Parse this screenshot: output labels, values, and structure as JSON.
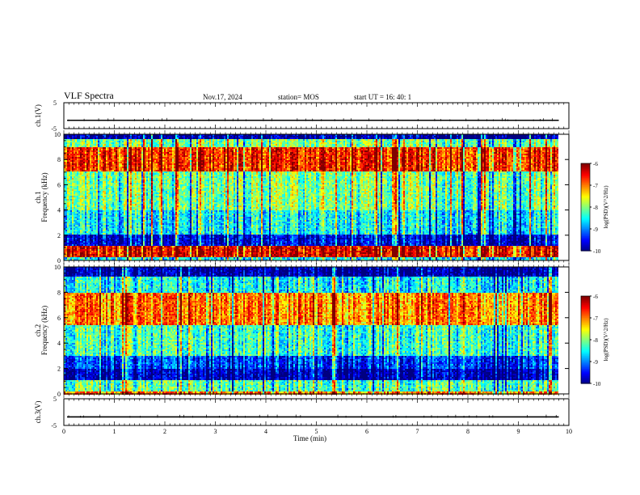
{
  "header": {
    "title": "VLF Spectra",
    "date": "Nov.17, 2024",
    "station": "station= MOS",
    "start": "start  UT =   16: 40: 1"
  },
  "chart_data": [
    {
      "type": "line",
      "panel": "ch1-waveform",
      "ylabel": "ch.1(V)",
      "ylim": [
        -5,
        5
      ],
      "yticks": [
        "5",
        "-5"
      ],
      "xlim": [
        0,
        10
      ],
      "series": [
        {
          "values_approx_constant": -1.8
        }
      ]
    },
    {
      "type": "heatmap",
      "panel": "ch1-spectrogram",
      "ylabel": "ch.1  Frequency (kHz)",
      "ylim": [
        0,
        10
      ],
      "yticks": [
        "0",
        "2",
        "4",
        "6",
        "8",
        "10"
      ],
      "xlim": [
        0,
        9.8
      ],
      "colorbar": {
        "label": "log(PSD)(V^2/Hz)",
        "range": [
          -10,
          -6
        ],
        "ticks": [
          "-6",
          "-7",
          "-8",
          "-9",
          "-10"
        ]
      },
      "bands": [
        {
          "freq": [
            9.6,
            10
          ],
          "level": -9.9
        },
        {
          "freq": [
            9.0,
            9.6
          ],
          "level": -8.0
        },
        {
          "freq": [
            7.0,
            9.0
          ],
          "level": -6.6
        },
        {
          "freq": [
            4.0,
            7.0
          ],
          "level": -8.0
        },
        {
          "freq": [
            2.0,
            4.0
          ],
          "level": -8.5
        },
        {
          "freq": [
            1.2,
            2.0
          ],
          "level": -9.6
        },
        {
          "freq": [
            0.2,
            1.2
          ],
          "level": -6.4
        },
        {
          "freq": [
            0.0,
            0.2
          ],
          "level": -8.5
        }
      ]
    },
    {
      "type": "heatmap",
      "panel": "ch2-spectrogram",
      "ylabel": "ch.2  Frequency (kHz)",
      "ylim": [
        0,
        10
      ],
      "yticks": [
        "0",
        "2",
        "4",
        "6",
        "8",
        "10"
      ],
      "xlim": [
        0,
        9.8
      ],
      "colorbar": {
        "label": "log(PSD)(V^2/Hz)",
        "range": [
          -10,
          -6
        ],
        "ticks": [
          "-6",
          "-7",
          "-8",
          "-9",
          "-10"
        ]
      },
      "bands": [
        {
          "freq": [
            9.2,
            10
          ],
          "level": -9.9
        },
        {
          "freq": [
            8.0,
            9.2
          ],
          "level": -8.5
        },
        {
          "freq": [
            5.5,
            8.0
          ],
          "level": -7.0
        },
        {
          "freq": [
            3.0,
            5.5
          ],
          "level": -8.3
        },
        {
          "freq": [
            2.0,
            3.0
          ],
          "level": -9.3
        },
        {
          "freq": [
            1.2,
            2.0
          ],
          "level": -9.8
        },
        {
          "freq": [
            0.3,
            1.2
          ],
          "level": -8.2
        },
        {
          "freq": [
            0.0,
            0.3
          ],
          "level": -7.0
        }
      ]
    },
    {
      "type": "line",
      "panel": "ch3-waveform",
      "ylabel": "ch.3(V)",
      "ylim": [
        -5,
        5
      ],
      "yticks": [
        "5",
        "-5"
      ],
      "xlim": [
        0,
        10
      ],
      "xlabel": "Time  (min)",
      "xticks": [
        "0",
        "1",
        "2",
        "3",
        "4",
        "5",
        "6",
        "7",
        "8",
        "9",
        "10"
      ],
      "series": [
        {
          "values_approx_constant": -1.8
        }
      ]
    }
  ]
}
